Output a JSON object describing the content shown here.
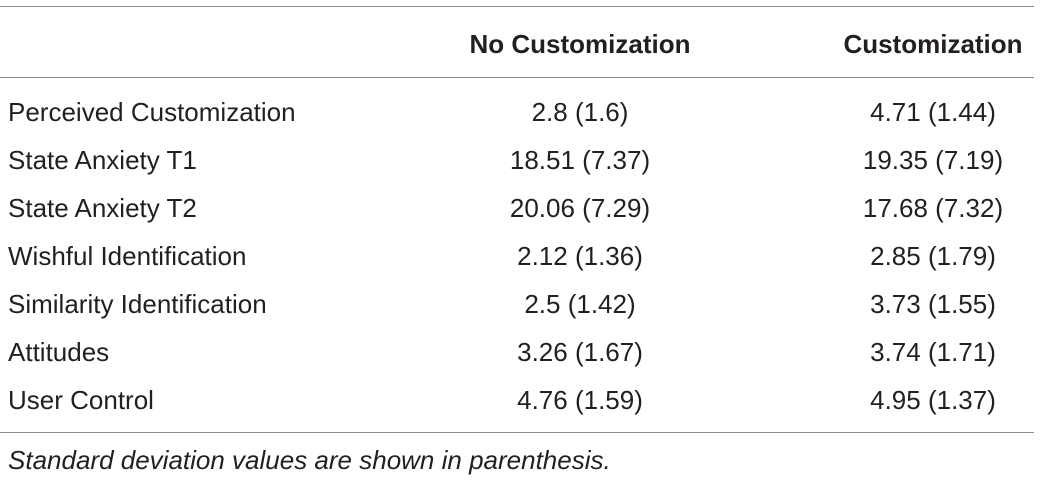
{
  "table": {
    "headers": [
      "",
      "No Customization",
      "Customization"
    ],
    "rows": [
      {
        "label": "Perceived Customization",
        "no_customization": "2.8 (1.6)",
        "customization": "4.71 (1.44)"
      },
      {
        "label": "State Anxiety T1",
        "no_customization": "18.51 (7.37)",
        "customization": "19.35 (7.19)"
      },
      {
        "label": "State Anxiety T2",
        "no_customization": "20.06 (7.29)",
        "customization": "17.68 (7.32)"
      },
      {
        "label": "Wishful Identification",
        "no_customization": "2.12 (1.36)",
        "customization": "2.85 (1.79)"
      },
      {
        "label": "Similarity Identification",
        "no_customization": "2.5 (1.42)",
        "customization": "3.73 (1.55)"
      },
      {
        "label": "Attitudes",
        "no_customization": "3.26 (1.67)",
        "customization": "3.74 (1.71)"
      },
      {
        "label": "User Control",
        "no_customization": "4.76 (1.59)",
        "customization": "4.95 (1.37)"
      }
    ],
    "footnote": "Standard deviation values are shown in parenthesis."
  }
}
